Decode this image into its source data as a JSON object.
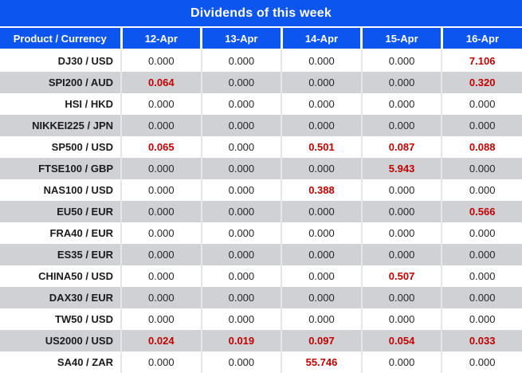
{
  "title": "Dividends of this week",
  "colors": {
    "header_blue": "#0d55ef",
    "highlight_red": "#c00000",
    "alt_row_gray": "#d0d1d5",
    "grid_line": "#e6e6e8"
  },
  "table": {
    "columns": [
      "Product / Currency",
      "12-Apr",
      "13-Apr",
      "14-Apr",
      "15-Apr",
      "16-Apr"
    ],
    "rows": [
      {
        "product": "DJ30 / USD",
        "cells": [
          {
            "v": "0.000",
            "hl": false
          },
          {
            "v": "0.000",
            "hl": false
          },
          {
            "v": "0.000",
            "hl": false
          },
          {
            "v": "0.000",
            "hl": false
          },
          {
            "v": "7.106",
            "hl": true
          }
        ]
      },
      {
        "product": "SPI200 / AUD",
        "cells": [
          {
            "v": "0.064",
            "hl": true
          },
          {
            "v": "0.000",
            "hl": false
          },
          {
            "v": "0.000",
            "hl": false
          },
          {
            "v": "0.000",
            "hl": false
          },
          {
            "v": "0.320",
            "hl": true
          }
        ]
      },
      {
        "product": "HSI / HKD",
        "cells": [
          {
            "v": "0.000",
            "hl": false
          },
          {
            "v": "0.000",
            "hl": false
          },
          {
            "v": "0.000",
            "hl": false
          },
          {
            "v": "0.000",
            "hl": false
          },
          {
            "v": "0.000",
            "hl": false
          }
        ]
      },
      {
        "product": "NIKKEI225 / JPN",
        "cells": [
          {
            "v": "0.000",
            "hl": false
          },
          {
            "v": "0.000",
            "hl": false
          },
          {
            "v": "0.000",
            "hl": false
          },
          {
            "v": "0.000",
            "hl": false
          },
          {
            "v": "0.000",
            "hl": false
          }
        ]
      },
      {
        "product": "SP500 / USD",
        "cells": [
          {
            "v": "0.065",
            "hl": true
          },
          {
            "v": "0.000",
            "hl": false
          },
          {
            "v": "0.501",
            "hl": true
          },
          {
            "v": "0.087",
            "hl": true
          },
          {
            "v": "0.088",
            "hl": true
          }
        ]
      },
      {
        "product": "FTSE100 / GBP",
        "cells": [
          {
            "v": "0.000",
            "hl": false
          },
          {
            "v": "0.000",
            "hl": false
          },
          {
            "v": "0.000",
            "hl": false
          },
          {
            "v": "5.943",
            "hl": true
          },
          {
            "v": "0.000",
            "hl": false
          }
        ]
      },
      {
        "product": "NAS100 / USD",
        "cells": [
          {
            "v": "0.000",
            "hl": false
          },
          {
            "v": "0.000",
            "hl": false
          },
          {
            "v": "0.388",
            "hl": true
          },
          {
            "v": "0.000",
            "hl": false
          },
          {
            "v": "0.000",
            "hl": false
          }
        ]
      },
      {
        "product": "EU50 / EUR",
        "cells": [
          {
            "v": "0.000",
            "hl": false
          },
          {
            "v": "0.000",
            "hl": false
          },
          {
            "v": "0.000",
            "hl": false
          },
          {
            "v": "0.000",
            "hl": false
          },
          {
            "v": "0.566",
            "hl": true
          }
        ]
      },
      {
        "product": "FRA40 / EUR",
        "cells": [
          {
            "v": "0.000",
            "hl": false
          },
          {
            "v": "0.000",
            "hl": false
          },
          {
            "v": "0.000",
            "hl": false
          },
          {
            "v": "0.000",
            "hl": false
          },
          {
            "v": "0.000",
            "hl": false
          }
        ]
      },
      {
        "product": "ES35 / EUR",
        "cells": [
          {
            "v": "0.000",
            "hl": false
          },
          {
            "v": "0.000",
            "hl": false
          },
          {
            "v": "0.000",
            "hl": false
          },
          {
            "v": "0.000",
            "hl": false
          },
          {
            "v": "0.000",
            "hl": false
          }
        ]
      },
      {
        "product": "CHINA50 / USD",
        "cells": [
          {
            "v": "0.000",
            "hl": false
          },
          {
            "v": "0.000",
            "hl": false
          },
          {
            "v": "0.000",
            "hl": false
          },
          {
            "v": "0.507",
            "hl": true
          },
          {
            "v": "0.000",
            "hl": false
          }
        ]
      },
      {
        "product": "DAX30 / EUR",
        "cells": [
          {
            "v": "0.000",
            "hl": false
          },
          {
            "v": "0.000",
            "hl": false
          },
          {
            "v": "0.000",
            "hl": false
          },
          {
            "v": "0.000",
            "hl": false
          },
          {
            "v": "0.000",
            "hl": false
          }
        ]
      },
      {
        "product": "TW50 / USD",
        "cells": [
          {
            "v": "0.000",
            "hl": false
          },
          {
            "v": "0.000",
            "hl": false
          },
          {
            "v": "0.000",
            "hl": false
          },
          {
            "v": "0.000",
            "hl": false
          },
          {
            "v": "0.000",
            "hl": false
          }
        ]
      },
      {
        "product": "US2000 / USD",
        "cells": [
          {
            "v": "0.024",
            "hl": true
          },
          {
            "v": "0.019",
            "hl": true
          },
          {
            "v": "0.097",
            "hl": true
          },
          {
            "v": "0.054",
            "hl": true
          },
          {
            "v": "0.033",
            "hl": true
          }
        ]
      },
      {
        "product": "SA40 / ZAR",
        "cells": [
          {
            "v": "0.000",
            "hl": false
          },
          {
            "v": "0.000",
            "hl": false
          },
          {
            "v": "55.746",
            "hl": true
          },
          {
            "v": "0.000",
            "hl": false
          },
          {
            "v": "0.000",
            "hl": false
          }
        ]
      }
    ]
  }
}
